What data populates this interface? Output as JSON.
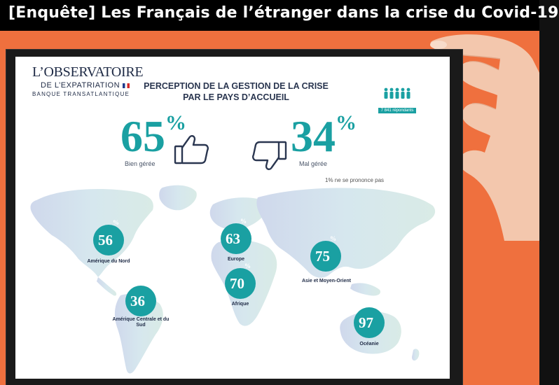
{
  "page": {
    "title": "[Enquête] Les Français de l’étranger dans la crise du Covid-19"
  },
  "colors": {
    "orange": "#ee6a3b",
    "teal": "#1aa0a2",
    "navy": "#1e2a45",
    "map": "#d9e6f1"
  },
  "logo": {
    "line1": "L’OBSERVATOIRE",
    "line2": "DE L’EXPATRIATION",
    "line3": "BANQUE TRANSATLANTIQUE"
  },
  "infographic": {
    "title_line1": "PERCEPTION DE LA GESTION DE LA CRISE",
    "title_line2": "PAR LE PAYS D’ACCUEIL",
    "respondents": "7 841 répondants",
    "good": {
      "value": "65",
      "unit": "%",
      "label": "Bien gérée"
    },
    "bad": {
      "value": "34",
      "unit": "%",
      "label": "Mal gérée"
    },
    "note": "1% ne se prononce pas",
    "regions": [
      {
        "value": "56",
        "unit": "%",
        "label": "Amérique du Nord"
      },
      {
        "value": "36",
        "unit": "%",
        "label": "Amérique Centrale et du Sud"
      },
      {
        "value": "63",
        "unit": "%",
        "label": "Europe"
      },
      {
        "value": "70",
        "unit": "%",
        "label": "Afrique"
      },
      {
        "value": "75",
        "unit": "%",
        "label": "Asie et Moyen-Orient"
      },
      {
        "value": "97",
        "unit": "%",
        "label": "Océanie"
      }
    ]
  }
}
